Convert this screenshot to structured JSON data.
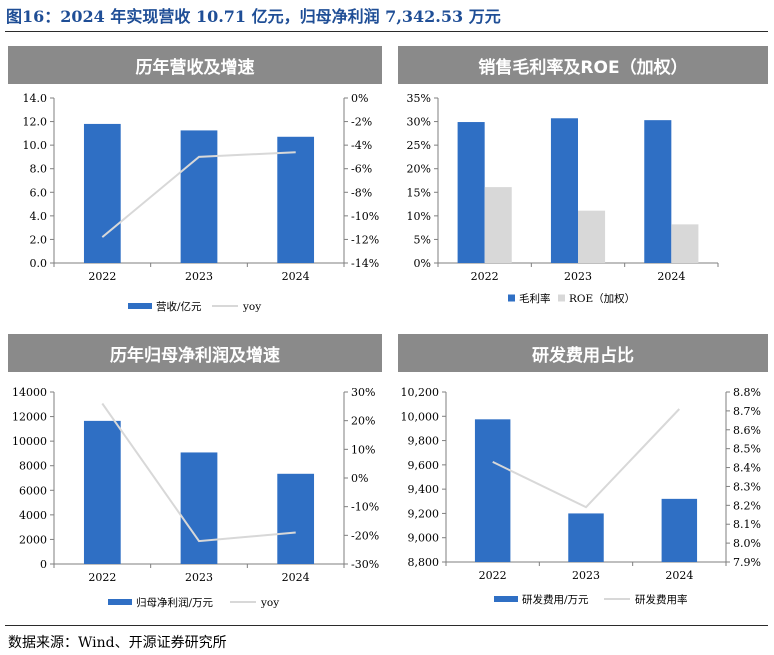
{
  "figure_title": "图16：2024 年实现营收 10.71 亿元，归母净利润 7,342.53 万元",
  "source": "数据来源：Wind、开源证券研究所",
  "colors": {
    "bar_primary": "#2f6fc4",
    "bar_secondary": "#d8d8d8",
    "line": "#d8d8d8",
    "title_bg": "#8a8a8a",
    "title_text": "#ffffff",
    "figure_title": "#1f4e96"
  },
  "panel_titles": [
    "历年营收及增速",
    "销售毛利率及ROE（加权）",
    "历年归母净利润及增速",
    "研发费用占比"
  ],
  "chart_data": [
    {
      "type": "bar+line",
      "title": "历年营收及增速",
      "categories": [
        "2022",
        "2023",
        "2024"
      ],
      "series": [
        {
          "name": "营收/亿元",
          "kind": "bar",
          "axis": "left",
          "values": [
            11.8,
            11.25,
            10.71
          ]
        },
        {
          "name": "yoy",
          "kind": "line",
          "axis": "right",
          "values": [
            -11.8,
            -5.0,
            -4.6
          ]
        }
      ],
      "left_axis": {
        "min": 0,
        "max": 14,
        "step": 2,
        "ticks": [
          "0.0",
          "2.0",
          "4.0",
          "6.0",
          "8.0",
          "10.0",
          "12.0",
          "14.0"
        ]
      },
      "right_axis": {
        "min": -14,
        "max": 0,
        "step": 2,
        "ticks": [
          "-14%",
          "-12%",
          "-10%",
          "-8%",
          "-6%",
          "-4%",
          "-2%",
          "0%"
        ]
      },
      "legend": "bottom"
    },
    {
      "type": "bar",
      "title": "销售毛利率及ROE（加权）",
      "categories": [
        "2022",
        "2023",
        "2024"
      ],
      "series": [
        {
          "name": "毛利率",
          "kind": "bar",
          "axis": "left",
          "values": [
            29.9,
            30.7,
            30.3
          ]
        },
        {
          "name": "ROE（加权）",
          "kind": "bar",
          "axis": "left",
          "values": [
            16.1,
            11.1,
            8.2
          ]
        }
      ],
      "left_axis": {
        "min": 0,
        "max": 35,
        "step": 5,
        "ticks": [
          "0%",
          "5%",
          "10%",
          "15%",
          "20%",
          "25%",
          "30%",
          "35%"
        ]
      },
      "legend": "bottom"
    },
    {
      "type": "bar+line",
      "title": "历年归母净利润及增速",
      "categories": [
        "2022",
        "2023",
        "2024"
      ],
      "series": [
        {
          "name": "归母净利润/万元",
          "kind": "bar",
          "axis": "left",
          "values": [
            11650,
            9080,
            7342.53
          ]
        },
        {
          "name": "yoy",
          "kind": "line",
          "axis": "right",
          "values": [
            26,
            -22,
            -19
          ]
        }
      ],
      "left_axis": {
        "min": 0,
        "max": 14000,
        "step": 2000,
        "ticks": [
          "0",
          "2000",
          "4000",
          "6000",
          "8000",
          "10000",
          "12000",
          "14000"
        ]
      },
      "right_axis": {
        "min": -30,
        "max": 30,
        "step": 10,
        "ticks": [
          "-30%",
          "-20%",
          "-10%",
          "0%",
          "10%",
          "20%",
          "30%"
        ]
      },
      "legend": "bottom"
    },
    {
      "type": "bar+line",
      "title": "研发费用占比",
      "categories": [
        "2022",
        "2023",
        "2024"
      ],
      "series": [
        {
          "name": "研发费用/万元",
          "kind": "bar",
          "axis": "left",
          "values": [
            9975,
            9200,
            9320
          ]
        },
        {
          "name": "研发费用率",
          "kind": "line",
          "axis": "right",
          "values": [
            8.43,
            8.19,
            8.71
          ]
        }
      ],
      "left_axis": {
        "min": 8800,
        "max": 10200,
        "step": 200,
        "ticks": [
          "8,800",
          "9,000",
          "9,200",
          "9,400",
          "9,600",
          "9,800",
          "10,000",
          "10,200"
        ]
      },
      "right_axis": {
        "min": 7.9,
        "max": 8.8,
        "step": 0.1,
        "ticks": [
          "7.9%",
          "8.0%",
          "8.1%",
          "8.2%",
          "8.3%",
          "8.4%",
          "8.5%",
          "8.6%",
          "8.7%",
          "8.8%"
        ]
      },
      "legend": "bottom"
    }
  ]
}
